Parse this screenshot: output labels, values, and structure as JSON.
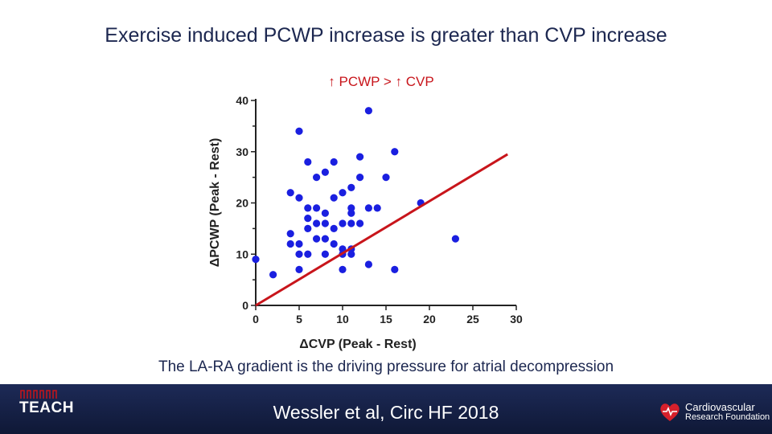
{
  "slide": {
    "title": "Exercise induced PCWP increase is greater than CVP increase",
    "caption": "The LA-RA gradient is the driving pressure for atrial decompression",
    "citation": "Wessler et al, Circ HF 2018"
  },
  "logos": {
    "teach": "TEACH",
    "crf_line1": "Cardiovascular",
    "crf_line2": "Research Foundation"
  },
  "colors": {
    "title": "#1c2750",
    "accent_red": "#c8151b",
    "points": "#1a1fe0",
    "footer": "#1d2a57"
  },
  "chart_data": {
    "type": "scatter",
    "title": "↑ PCWP > ↑ CVP",
    "xlabel": "ΔCVP (Peak - Rest)",
    "ylabel": "ΔPCWP (Peak - Rest)",
    "xlim": [
      0,
      30
    ],
    "ylim": [
      0,
      40
    ],
    "xticks": [
      0,
      5,
      10,
      15,
      20,
      25,
      30
    ],
    "yticks": [
      0,
      10,
      20,
      30,
      40
    ],
    "grid": false,
    "points": [
      [
        0,
        9
      ],
      [
        2,
        6
      ],
      [
        4,
        22
      ],
      [
        4,
        14
      ],
      [
        4,
        12
      ],
      [
        5,
        34
      ],
      [
        5,
        21
      ],
      [
        5,
        12
      ],
      [
        5,
        10
      ],
      [
        5,
        7
      ],
      [
        6,
        28
      ],
      [
        6,
        19
      ],
      [
        6,
        17
      ],
      [
        6,
        15
      ],
      [
        6,
        10
      ],
      [
        7,
        25
      ],
      [
        7,
        19
      ],
      [
        7,
        16
      ],
      [
        7,
        13
      ],
      [
        8,
        26
      ],
      [
        8,
        18
      ],
      [
        8,
        16
      ],
      [
        8,
        13
      ],
      [
        8,
        10
      ],
      [
        9,
        28
      ],
      [
        9,
        21
      ],
      [
        9,
        15
      ],
      [
        9,
        12
      ],
      [
        10,
        22
      ],
      [
        10,
        16
      ],
      [
        10,
        11
      ],
      [
        10,
        10
      ],
      [
        10,
        7
      ],
      [
        11,
        23
      ],
      [
        11,
        19
      ],
      [
        11,
        18
      ],
      [
        11,
        16
      ],
      [
        11,
        11
      ],
      [
        11,
        10
      ],
      [
        12,
        29
      ],
      [
        12,
        25
      ],
      [
        12,
        16
      ],
      [
        13,
        38
      ],
      [
        13,
        19
      ],
      [
        13,
        8
      ],
      [
        14,
        19
      ],
      [
        15,
        25
      ],
      [
        16,
        30
      ],
      [
        16,
        7
      ],
      [
        19,
        20
      ],
      [
        23,
        13
      ]
    ],
    "reference_line": {
      "x": [
        0,
        29
      ],
      "y": [
        0,
        29.5
      ]
    }
  }
}
